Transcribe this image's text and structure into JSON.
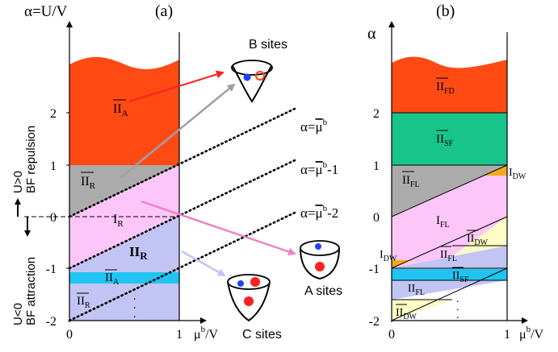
{
  "colors": {
    "red": "#ff4a14",
    "gray": "#ababab",
    "pink": "#fcc6f8",
    "lavender": "#c2c4f4",
    "cyan": "#20c4f0",
    "teal": "#18c48a",
    "yellow": "#fcfcc4",
    "orange": "#f4a81c",
    "arrow_red": "#ff2020",
    "arrow_gray": "#a0a0a0",
    "arrow_pink": "#f080c8",
    "arrow_lav": "#c0c4f8",
    "dot_blue": "#2040ff",
    "dot_red": "#ff2020"
  },
  "panel_a": {
    "label": "(a)",
    "y_axis_title": "α=U/V",
    "x_axis_title": "μ",
    "x_axis_sup": "b",
    "x_axis_unit": "/V",
    "y_ticks": [
      "2",
      "1",
      "0",
      "-1",
      "-2"
    ],
    "x_ticks": [
      "0",
      "1"
    ],
    "repulsion_title": "U>0",
    "repulsion_label": "BF repulsion",
    "attraction_title": "U<0",
    "attraction_label": "BF attraction",
    "regions": {
      "top": {
        "main": "II",
        "sub": "A"
      },
      "gray": {
        "main": "II",
        "sub": "R"
      },
      "pink": {
        "main": "I",
        "sub": "R"
      },
      "lav": {
        "main": "II",
        "sub": "R"
      },
      "cyan": {
        "main": "II",
        "sub": "A"
      },
      "bottom": {
        "main": "II",
        "sub": "R"
      }
    },
    "dots": ".",
    "lines": [
      {
        "prefix": "α=",
        "mu": "μ",
        "sup": "b",
        "suffix": ""
      },
      {
        "prefix": "α=",
        "mu": "μ",
        "sup": "b",
        "suffix": "-1"
      },
      {
        "prefix": "α=",
        "mu": "μ",
        "sup": "b",
        "suffix": "-2"
      }
    ],
    "sites": {
      "B": "B sites",
      "A": "A sites",
      "C": "C sites"
    }
  },
  "panel_b": {
    "label": "(b)",
    "y_axis_title": "α",
    "x_axis_title": "μ",
    "x_axis_sup": "b",
    "x_axis_unit": "/V",
    "y_ticks": [
      "2",
      "1",
      "0",
      "-1",
      "-2"
    ],
    "x_ticks": [
      "0",
      "1"
    ],
    "regions": {
      "fd": {
        "main": "II",
        "sub": "FD"
      },
      "sf": {
        "main": "II",
        "sub": "SF"
      },
      "fl1": {
        "main": "II",
        "sub": "FL"
      },
      "dw1": {
        "main": "I",
        "sub": "DW"
      },
      "ifl": {
        "main": "I",
        "sub": "FL"
      },
      "dw2": {
        "main": "II",
        "sub": "DW"
      },
      "dw3": {
        "main": "I",
        "sub": "DW"
      },
      "fl2": {
        "main": "II",
        "sub": "FL"
      },
      "sf2": {
        "main": "II",
        "sub": "SF"
      },
      "fl3": {
        "main": "II",
        "sub": "FL"
      },
      "dw4": {
        "main": "II",
        "sub": "DW"
      }
    },
    "dots": "."
  }
}
